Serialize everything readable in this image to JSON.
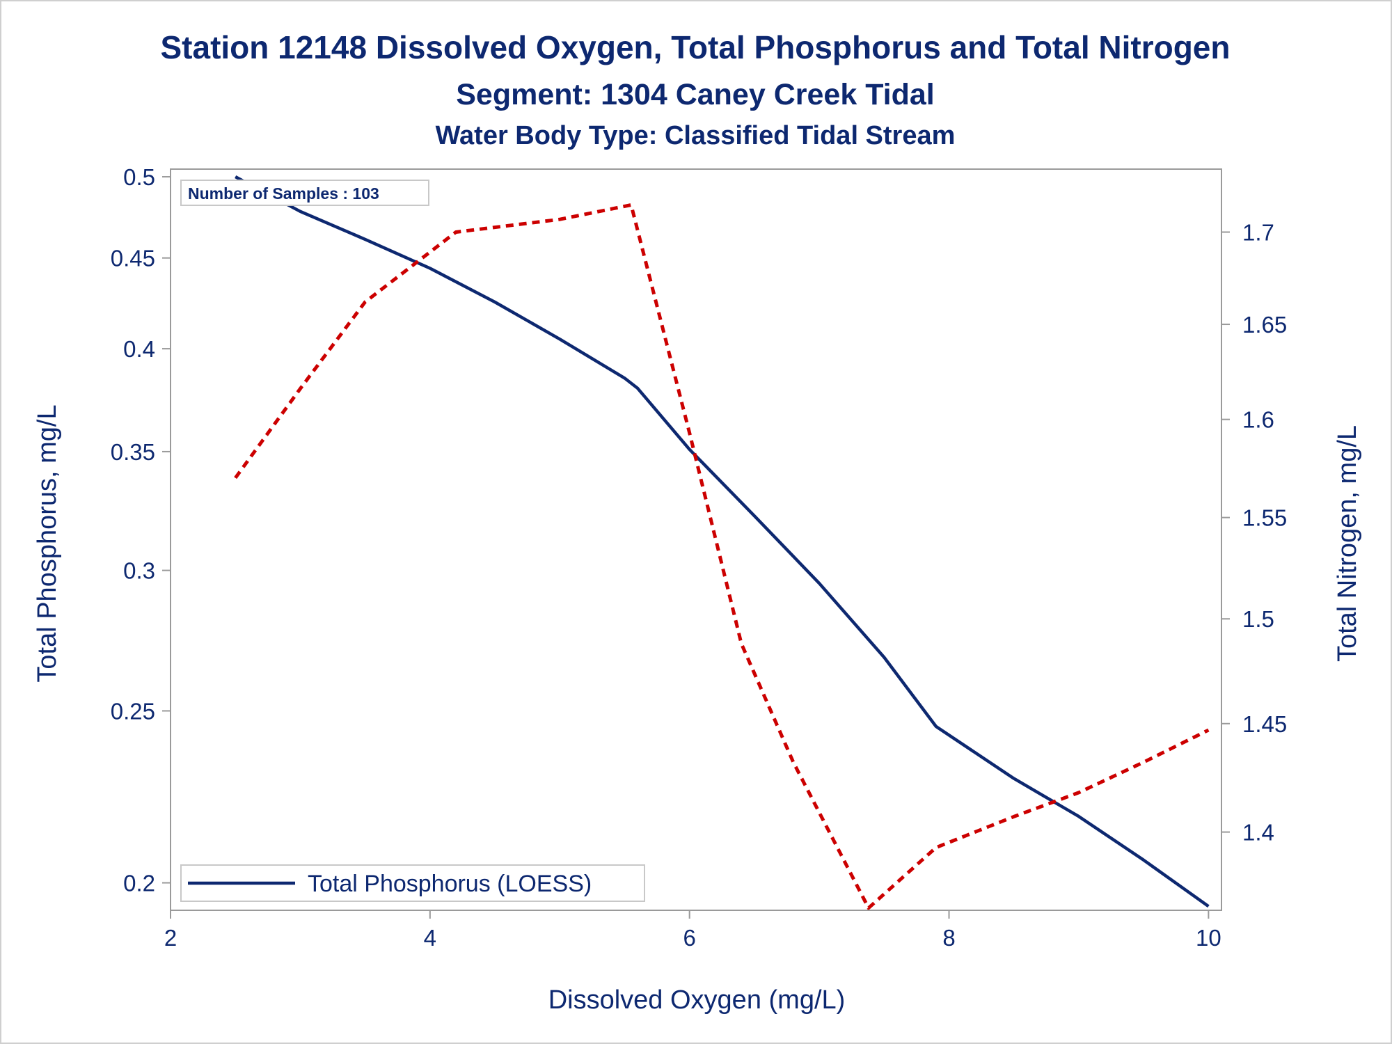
{
  "chart_data": {
    "type": "line",
    "title": "Station 12148  Dissolved Oxygen, Total Phosphorus and Total Nitrogen",
    "subtitle": "Segment: 1304  Caney Creek Tidal",
    "subtitle2": "Water Body Type: Classified Tidal Stream",
    "xlabel": "Dissolved Oxygen (mg/L)",
    "ylabel": "Total Phosphorus, mg/L",
    "y2label": "Total Nitrogen, mg/L",
    "xlim": [
      2,
      10.1
    ],
    "x_ticks": [
      2,
      4,
      6,
      8,
      10
    ],
    "x_tick_labels": [
      "2",
      "4",
      "6",
      "8",
      "10"
    ],
    "ylim": [
      0.193,
      0.505
    ],
    "y_scale": "log",
    "y_ticks": [
      0.2,
      0.25,
      0.3,
      0.35,
      0.4,
      0.45,
      0.5
    ],
    "y_tick_labels": [
      "0.2",
      "0.25",
      "0.3",
      "0.35",
      "0.4",
      "0.45",
      "0.5"
    ],
    "y2lim": [
      1.365,
      1.735
    ],
    "y2_scale": "log",
    "y2_ticks": [
      1.4,
      1.45,
      1.5,
      1.55,
      1.6,
      1.65,
      1.7
    ],
    "y2_tick_labels": [
      "1.4",
      "1.45",
      "1.5",
      "1.55",
      "1.6",
      "1.65",
      "1.7"
    ],
    "inset_text": "Number of Samples : 103",
    "legend_position": "bottom-left",
    "grid": false,
    "series": [
      {
        "name": "Total Phosphorus (LOESS)",
        "axis": "left",
        "color": "#0d2870",
        "style": "solid",
        "x": [
          2.5,
          3.0,
          3.5,
          4.0,
          4.5,
          5.0,
          5.5,
          5.6,
          6.0,
          6.5,
          7.0,
          7.5,
          7.9,
          8.5,
          9.0,
          9.5,
          10.0
        ],
        "y": [
          0.5,
          0.478,
          0.461,
          0.444,
          0.425,
          0.405,
          0.385,
          0.38,
          0.351,
          0.322,
          0.295,
          0.268,
          0.245,
          0.229,
          0.218,
          0.206,
          0.194
        ]
      },
      {
        "name": "",
        "axis": "right",
        "color": "#cc0000",
        "style": "dashed",
        "x": [
          2.5,
          3.0,
          3.5,
          4.2,
          5.0,
          5.55,
          6.0,
          6.4,
          6.8,
          7.38,
          7.9,
          8.5,
          9.0,
          9.5,
          10.0
        ],
        "y": [
          1.57,
          1.616,
          1.662,
          1.7,
          1.707,
          1.715,
          1.593,
          1.488,
          1.432,
          1.366,
          1.393,
          1.407,
          1.418,
          1.432,
          1.447
        ]
      }
    ]
  }
}
